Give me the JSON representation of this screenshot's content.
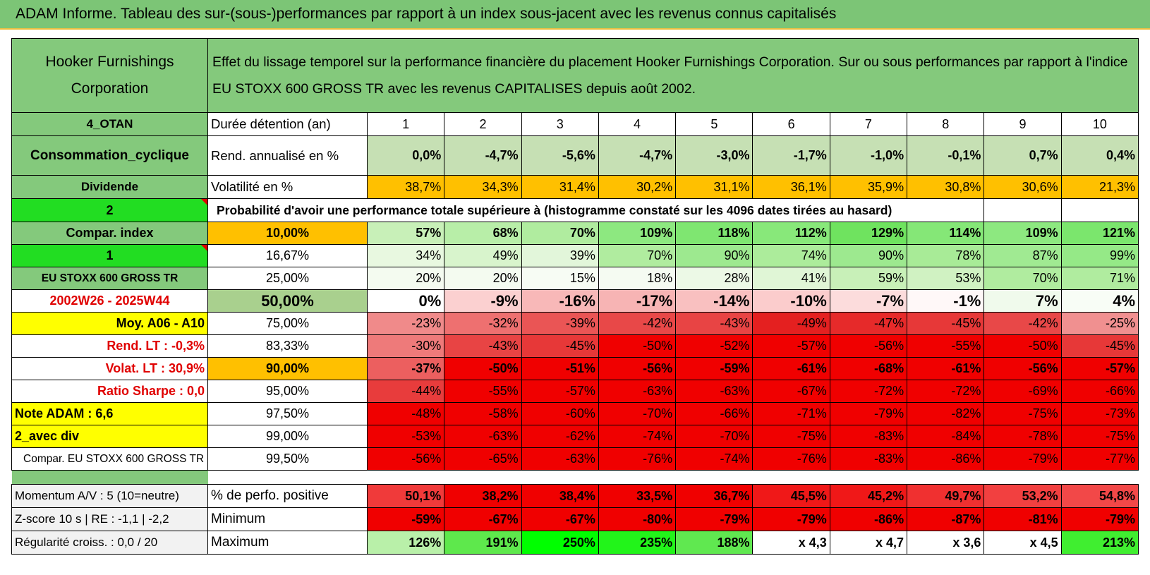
{
  "title": "ADAM Informe. Tableau des sur-(sous-)performances par rapport à un index sous-jacent avec les revenus connus capitalisés",
  "header": {
    "company": "Hooker Furnishings Corporation",
    "description": "Effet du lissage temporel sur la performance financière du placement Hooker Furnishings Corporation. Sur ou sous performances par rapport à l'indice EU STOXX 600 GROSS TR avec les revenus CAPITALISES depuis août 2002."
  },
  "info_rows": [
    {
      "left": "4_OTAN",
      "label": "Durée détention (an)",
      "cells": [
        "1",
        "2",
        "3",
        "4",
        "5",
        "6",
        "7",
        "8",
        "9",
        "10"
      ],
      "colors": [
        "#ffffff",
        "#ffffff",
        "#ffffff",
        "#ffffff",
        "#ffffff",
        "#ffffff",
        "#ffffff",
        "#ffffff",
        "#ffffff",
        "#ffffff"
      ]
    },
    {
      "left": "Consommation_cyclique",
      "label": "Rend. annualisé en %",
      "cells": [
        "0,0%",
        "-4,7%",
        "-5,6%",
        "-4,7%",
        "-3,0%",
        "-1,7%",
        "-1,0%",
        "-0,1%",
        "0,7%",
        "0,4%"
      ],
      "colors": [
        "#c6e0b4",
        "#c6e0b4",
        "#c6e0b4",
        "#c6e0b4",
        "#c6e0b4",
        "#c6e0b4",
        "#c6e0b4",
        "#c6e0b4",
        "#c6e0b4",
        "#c6e0b4"
      ]
    },
    {
      "left": "Dividende",
      "label": "Volatilité en %",
      "cells": [
        "38,7%",
        "34,3%",
        "31,4%",
        "30,2%",
        "31,1%",
        "36,1%",
        "35,9%",
        "30,8%",
        "30,6%",
        "21,3%"
      ],
      "colors": [
        "#ffc000",
        "#ffc000",
        "#ffc000",
        "#ffc000",
        "#ffc000",
        "#ffc000",
        "#ffc000",
        "#ffc000",
        "#ffc000",
        "#ffc000"
      ]
    }
  ],
  "probability": {
    "left": "2",
    "text": "Probabilité d'avoir une performance totale supérieure à (histogramme constaté sur les 4096 dates tirées au hasard)"
  },
  "percentile_rows": [
    {
      "left": "Compar. index",
      "left_bg": "#84c97c",
      "left_fg": "#000000",
      "pct": "10,00%",
      "pct_bg": "#ffc000",
      "cells": [
        "57%",
        "68%",
        "70%",
        "109%",
        "118%",
        "112%",
        "129%",
        "114%",
        "109%",
        "121%"
      ],
      "colors": [
        "#c8f0b8",
        "#b8eea8",
        "#b0ec9f",
        "#8de880",
        "#7fe671",
        "#88e87a",
        "#6fe35f",
        "#85e777",
        "#8de880",
        "#7be66d"
      ]
    },
    {
      "left": "1",
      "left_bg": "#22dd22",
      "left_fg": "#000000",
      "pct": "16,67%",
      "pct_bg": "#ffffff",
      "cells": [
        "34%",
        "49%",
        "39%",
        "70%",
        "90%",
        "74%",
        "90%",
        "78%",
        "87%",
        "99%"
      ],
      "colors": [
        "#e8f8e0",
        "#d8f4cc",
        "#e2f6da",
        "#b0ec9f",
        "#9de98f",
        "#acec9b",
        "#9de98f",
        "#a8eb97",
        "#a0ea92",
        "#95e987"
      ]
    },
    {
      "left": "EU STOXX 600 GROSS TR",
      "left_bg": "#84c97c",
      "left_fg": "#000000",
      "pct": "25,00%",
      "pct_bg": "#ffffff",
      "cells": [
        "20%",
        "20%",
        "15%",
        "18%",
        "28%",
        "41%",
        "59%",
        "53%",
        "70%",
        "71%"
      ],
      "colors": [
        "#f4fbf0",
        "#f4fbf0",
        "#f7fcf4",
        "#f5fbf2",
        "#ecf9e6",
        "#e0f6d6",
        "#c8f0b8",
        "#d0f2c2",
        "#b0ec9f",
        "#b0ec9f"
      ]
    },
    {
      "left": "2002W26 - 2025W44",
      "left_bg": "#ffffff",
      "left_fg": "#e00000",
      "pct": "50,00%",
      "pct_bg": "#a9d08e",
      "cells": [
        "0%",
        "-9%",
        "-16%",
        "-17%",
        "-14%",
        "-10%",
        "-7%",
        "-1%",
        "7%",
        "4%"
      ],
      "colors": [
        "#ffffff",
        "#fbd0d0",
        "#f8b8b8",
        "#f7b4b4",
        "#f9c0c0",
        "#fbcccc",
        "#fcdcdc",
        "#fff8f8",
        "#f0faec",
        "#f8fdf6"
      ]
    },
    {
      "left": "Moy. A06 - A10",
      "left_bg": "#ffff00",
      "left_fg": "#000000",
      "pct": "75,00%",
      "pct_bg": "#ffffff",
      "cells": [
        "-23%",
        "-32%",
        "-39%",
        "-42%",
        "-43%",
        "-49%",
        "-47%",
        "-45%",
        "-42%",
        "-25%"
      ],
      "colors": [
        "#f08a8a",
        "#ee7070",
        "#ea5555",
        "#e84848",
        "#e84444",
        "#e42020",
        "#e62a2a",
        "#e73838",
        "#e84848",
        "#f09090"
      ]
    },
    {
      "left": "Rend. LT :   -0,3%",
      "left_bg": "#ffffff",
      "left_fg": "#e00000",
      "pct": "83,33%",
      "pct_bg": "#ffffff",
      "cells": [
        "-30%",
        "-43%",
        "-45%",
        "-50%",
        "-52%",
        "-57%",
        "-56%",
        "-55%",
        "-50%",
        "-45%"
      ],
      "colors": [
        "#ee7a7a",
        "#e84444",
        "#e73838",
        "#f00000",
        "#f00000",
        "#f00000",
        "#f00000",
        "#f00000",
        "#f00000",
        "#e73838"
      ]
    },
    {
      "left": "Volat. LT :   30,9%",
      "left_bg": "#ffffff",
      "left_fg": "#e00000",
      "pct": "90,00%",
      "pct_bg": "#ffc000",
      "cells": [
        "-37%",
        "-50%",
        "-51%",
        "-56%",
        "-59%",
        "-61%",
        "-68%",
        "-61%",
        "-56%",
        "-57%"
      ],
      "colors": [
        "#ec5f5f",
        "#f00000",
        "#f00000",
        "#f00000",
        "#f00000",
        "#f00000",
        "#f00000",
        "#f00000",
        "#f00000",
        "#f00000"
      ]
    },
    {
      "left": "Ratio Sharpe :    0,0",
      "left_bg": "#ffffff",
      "left_fg": "#e00000",
      "pct": "95,00%",
      "pct_bg": "#ffffff",
      "cells": [
        "-44%",
        "-55%",
        "-57%",
        "-63%",
        "-63%",
        "-67%",
        "-72%",
        "-72%",
        "-69%",
        "-66%"
      ],
      "colors": [
        "#e83c3c",
        "#f00000",
        "#f00000",
        "#f00000",
        "#f00000",
        "#f00000",
        "#f00000",
        "#f00000",
        "#f00000",
        "#f00000"
      ]
    },
    {
      "left": "Note ADAM : 6,6",
      "left_bg": "#ffff00",
      "left_fg": "#000000",
      "pct": "97,50%",
      "pct_bg": "#ffffff",
      "cells": [
        "-48%",
        "-58%",
        "-60%",
        "-70%",
        "-66%",
        "-71%",
        "-79%",
        "-82%",
        "-75%",
        "-73%"
      ],
      "colors": [
        "#f00000",
        "#f00000",
        "#f00000",
        "#f00000",
        "#f00000",
        "#f00000",
        "#f00000",
        "#f00000",
        "#f00000",
        "#f00000"
      ]
    },
    {
      "left": "2_avec div",
      "left_bg": "#ffff00",
      "left_fg": "#000000",
      "pct": "99,00%",
      "pct_bg": "#ffffff",
      "cells": [
        "-53%",
        "-63%",
        "-62%",
        "-74%",
        "-70%",
        "-75%",
        "-83%",
        "-84%",
        "-78%",
        "-75%"
      ],
      "colors": [
        "#f00000",
        "#f00000",
        "#f00000",
        "#f00000",
        "#f00000",
        "#f00000",
        "#f00000",
        "#f00000",
        "#f00000",
        "#f00000"
      ]
    },
    {
      "left": "Compar. EU STOXX 600 GROSS TR",
      "left_bg": "#ffffff",
      "left_fg": "#000000",
      "pct": "99,50%",
      "pct_bg": "#ffffff",
      "cells": [
        "-56%",
        "-65%",
        "-63%",
        "-76%",
        "-74%",
        "-76%",
        "-83%",
        "-86%",
        "-79%",
        "-77%"
      ],
      "colors": [
        "#f00000",
        "#f00000",
        "#f00000",
        "#f00000",
        "#f00000",
        "#f00000",
        "#f00000",
        "#f00000",
        "#f00000",
        "#f00000"
      ]
    }
  ],
  "stats_rows": [
    {
      "left": "Momentum A/V : 5 (10=neutre)",
      "label": "% de perfo. positive",
      "cells": [
        "50,1%",
        "38,2%",
        "38,4%",
        "33,5%",
        "36,7%",
        "45,5%",
        "45,2%",
        "49,7%",
        "53,2%",
        "54,8%"
      ],
      "colors": [
        "#f03a3a",
        "#f00000",
        "#f00000",
        "#f00000",
        "#f00000",
        "#f01818",
        "#f01818",
        "#f03030",
        "#f24040",
        "#f24848"
      ]
    },
    {
      "left": "Z-score 10 s | RE : -1,1 | -2,2",
      "label": "Minimum",
      "cells": [
        "-59%",
        "-67%",
        "-67%",
        "-80%",
        "-79%",
        "-79%",
        "-86%",
        "-87%",
        "-81%",
        "-79%"
      ],
      "colors": [
        "#f00000",
        "#f00000",
        "#f00000",
        "#f00000",
        "#f00000",
        "#f00000",
        "#f00000",
        "#f00000",
        "#f00000",
        "#f00000"
      ]
    },
    {
      "left": "Régularité croiss. : 0,0 / 20",
      "label": "Maximum",
      "cells": [
        "126%",
        "191%",
        "250%",
        "235%",
        "188%",
        "x 4,3",
        "x 4,7",
        "x 3,6",
        "x 4,5",
        "213%"
      ],
      "colors": [
        "#b9f0a9",
        "#5ee84c",
        "#00ff00",
        "#22f41a",
        "#60e850",
        "#ffffff",
        "#ffffff",
        "#ffffff",
        "#ffffff",
        "#40ee30"
      ]
    }
  ]
}
